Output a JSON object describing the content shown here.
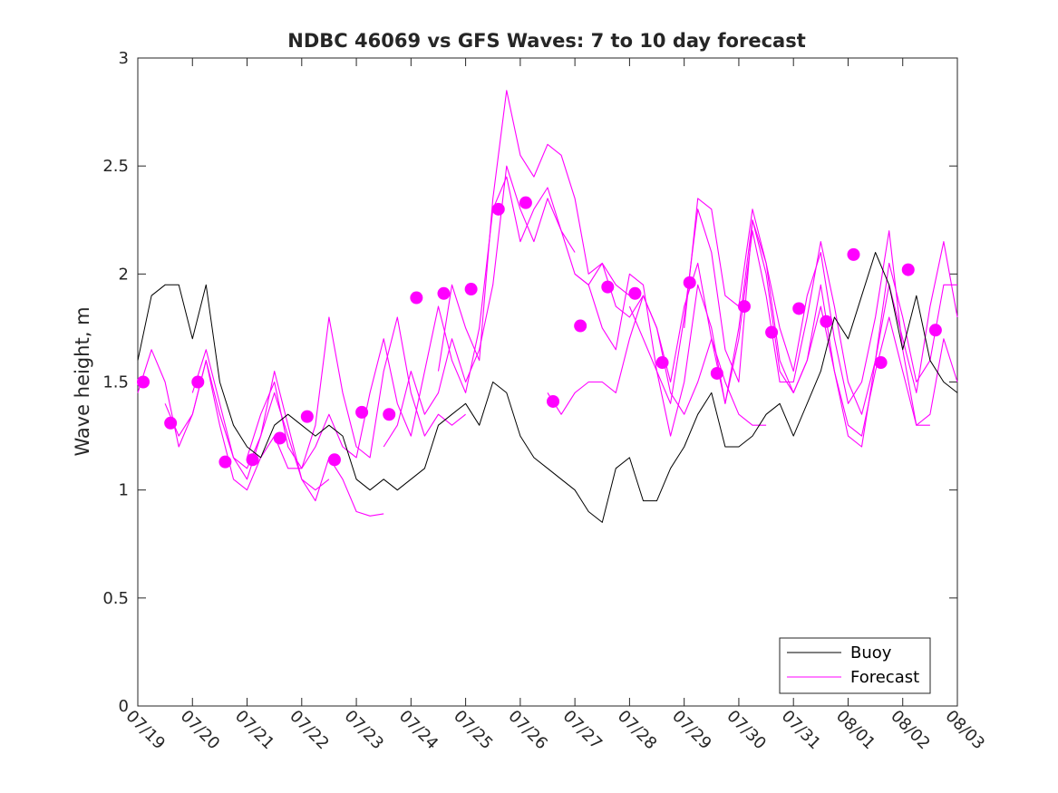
{
  "chart_data": {
    "type": "line",
    "title": "NDBC 46069 vs GFS Waves: 7 to 10 day forecast",
    "xlabel": "",
    "ylabel": "Wave height, m",
    "ylim": [
      0,
      3
    ],
    "yticks": [
      0,
      0.5,
      1,
      1.5,
      2,
      2.5,
      3
    ],
    "xlim": [
      "07/19",
      "08/03"
    ],
    "xtick_labels": [
      "07/19",
      "07/20",
      "07/21",
      "07/22",
      "07/23",
      "07/24",
      "07/25",
      "07/26",
      "07/27",
      "07/28",
      "07/29",
      "07/30",
      "07/31",
      "08/01",
      "08/02",
      "08/03"
    ],
    "x_unit": "day",
    "grid": false,
    "legend": {
      "position": "bottom-right",
      "entries": [
        "Buoy",
        "Forecast"
      ]
    },
    "colors": {
      "buoy": "#000000",
      "forecast": "#ff00ff",
      "axes": "#262626"
    },
    "series": [
      {
        "name": "Buoy",
        "style": "thin black line, hourly observations",
        "days": [
          0.0,
          0.25,
          0.5,
          0.75,
          1.0,
          1.25,
          1.5,
          1.75,
          2.0,
          2.25,
          2.5,
          2.75,
          3.0,
          3.25,
          3.5,
          3.75,
          4.0,
          4.25,
          4.5,
          4.75,
          5.0,
          5.25,
          5.5,
          5.75,
          6.0,
          6.25,
          6.5,
          6.75,
          7.0,
          7.25,
          7.5,
          7.75,
          8.0,
          8.25,
          8.5,
          8.75,
          9.0,
          9.25,
          9.5,
          9.75,
          10.0,
          10.25,
          10.5,
          10.75,
          11.0,
          11.25,
          11.5,
          11.75,
          12.0,
          12.25,
          12.5,
          12.75,
          13.0,
          13.25,
          13.5,
          13.75,
          14.0,
          14.25,
          14.5,
          14.75,
          15.0
        ],
        "values": [
          1.6,
          1.9,
          1.95,
          1.95,
          1.7,
          1.95,
          1.5,
          1.3,
          1.2,
          1.15,
          1.3,
          1.35,
          1.3,
          1.25,
          1.3,
          1.25,
          1.05,
          1.0,
          1.05,
          1.0,
          1.05,
          1.1,
          1.3,
          1.35,
          1.4,
          1.3,
          1.5,
          1.45,
          1.25,
          1.15,
          1.1,
          1.05,
          1.0,
          0.9,
          0.85,
          1.1,
          1.15,
          0.95,
          0.95,
          1.1,
          1.2,
          1.35,
          1.45,
          1.2,
          1.2,
          1.25,
          1.35,
          1.4,
          1.25,
          1.4,
          1.55,
          1.8,
          1.7,
          1.9,
          2.1,
          1.95,
          1.65,
          1.9,
          1.6,
          1.5,
          1.45
        ]
      },
      {
        "name": "Forecast",
        "style": "thin magenta lines, one per forecast run",
        "runs": [
          {
            "days": [
              0.0,
              0.25,
              0.5,
              0.75,
              1.0,
              1.25,
              1.5,
              1.75,
              2.0,
              2.25,
              2.5,
              2.75,
              3.0
            ],
            "values": [
              1.45,
              1.65,
              1.5,
              1.2,
              1.35,
              1.6,
              1.3,
              1.05,
              1.0,
              1.15,
              1.25,
              1.1,
              1.1
            ]
          },
          {
            "days": [
              0.5,
              0.75,
              1.0,
              1.25,
              1.5,
              1.75,
              2.0,
              2.25,
              2.5,
              2.75,
              3.0,
              3.25,
              3.5
            ],
            "values": [
              1.4,
              1.25,
              1.35,
              1.6,
              1.35,
              1.15,
              1.1,
              1.25,
              1.45,
              1.25,
              1.05,
              1.0,
              1.05
            ]
          },
          {
            "days": [
              1.0,
              1.25,
              1.5,
              1.75,
              2.0,
              2.25,
              2.5,
              2.75,
              3.0,
              3.25,
              3.5,
              3.75,
              4.0,
              4.25,
              4.5
            ],
            "values": [
              1.45,
              1.65,
              1.4,
              1.15,
              1.05,
              1.25,
              1.55,
              1.3,
              1.05,
              0.95,
              1.15,
              1.05,
              0.9,
              0.88,
              0.89
            ]
          },
          {
            "days": [
              2.0,
              2.25,
              2.5,
              2.75,
              3.0,
              3.25,
              3.5,
              3.75,
              4.0,
              4.25,
              4.5,
              4.75,
              5.0,
              5.25,
              5.5,
              5.75,
              6.0
            ],
            "values": [
              1.15,
              1.35,
              1.5,
              1.2,
              1.1,
              1.3,
              1.8,
              1.45,
              1.2,
              1.15,
              1.55,
              1.8,
              1.45,
              1.25,
              1.35,
              1.3,
              1.35
            ]
          },
          {
            "days": [
              3.0,
              3.25,
              3.5,
              3.75,
              4.0,
              4.25,
              4.5,
              4.75,
              5.0,
              5.25,
              5.5,
              5.75,
              6.0,
              6.25,
              6.5,
              6.75,
              7.0,
              7.25,
              7.5,
              7.75,
              8.0
            ],
            "values": [
              1.1,
              1.2,
              1.35,
              1.2,
              1.15,
              1.45,
              1.7,
              1.4,
              1.25,
              1.55,
              1.85,
              1.6,
              1.45,
              1.75,
              2.3,
              2.45,
              2.15,
              2.3,
              2.4,
              2.2,
              2.1
            ]
          },
          {
            "days": [
              4.5,
              4.75,
              5.0,
              5.25,
              5.5,
              5.75,
              6.0,
              6.25,
              6.5,
              6.75,
              7.0,
              7.25,
              7.5,
              7.75,
              8.0,
              8.25,
              8.5,
              8.75,
              9.0
            ],
            "values": [
              1.2,
              1.3,
              1.55,
              1.35,
              1.45,
              1.7,
              1.5,
              1.65,
              1.95,
              2.5,
              2.3,
              2.15,
              2.35,
              2.2,
              2.0,
              1.95,
              2.05,
              1.95,
              1.9
            ]
          },
          {
            "days": [
              5.5,
              5.75,
              6.0,
              6.25,
              6.5,
              6.75,
              7.0,
              7.25,
              7.5,
              7.75,
              8.0,
              8.25,
              8.5,
              8.75,
              9.0,
              9.25,
              9.5,
              9.75,
              10.0,
              10.25,
              10.5,
              10.75,
              11.0,
              11.25,
              11.5
            ],
            "values": [
              1.55,
              1.95,
              1.75,
              1.6,
              2.35,
              2.85,
              2.55,
              2.45,
              2.6,
              2.55,
              2.35,
              2.0,
              2.05,
              1.85,
              1.8,
              1.9,
              1.75,
              1.45,
              1.35,
              1.5,
              1.7,
              1.5,
              1.35,
              1.3,
              1.3
            ]
          },
          {
            "days": [
              7.5,
              7.75,
              8.0,
              8.25,
              8.5,
              8.75,
              9.0,
              9.25,
              9.5,
              9.75,
              10.0,
              10.25,
              10.5,
              10.75,
              11.0,
              11.25,
              11.5,
              11.75,
              12.0,
              12.25,
              12.5,
              12.75,
              13.0,
              13.25,
              13.5,
              13.75,
              14.0,
              14.25,
              14.5
            ],
            "values": [
              1.45,
              1.35,
              1.45,
              1.5,
              1.5,
              1.45,
              1.7,
              1.9,
              1.75,
              1.5,
              1.85,
              2.05,
              1.7,
              1.4,
              1.75,
              2.25,
              2.0,
              1.55,
              1.45,
              1.6,
              1.85,
              1.55,
              1.3,
              1.25,
              1.55,
              1.8,
              1.55,
              1.3,
              1.3
            ]
          },
          {
            "days": [
              8.0,
              8.25,
              8.5,
              8.75,
              9.0,
              9.25,
              9.5,
              9.75,
              10.0,
              10.25,
              10.5,
              10.75,
              11.0,
              11.25,
              11.5,
              11.75,
              12.0,
              12.25,
              12.5,
              12.75,
              13.0,
              13.25,
              13.5,
              13.75,
              14.0,
              14.25,
              14.5,
              14.75,
              15.0
            ],
            "values": [
              2.0,
              1.95,
              1.75,
              1.65,
              2.0,
              1.95,
              1.55,
              1.25,
              1.5,
              1.95,
              1.75,
              1.4,
              1.7,
              2.2,
              1.9,
              1.5,
              1.5,
              1.8,
              2.15,
              1.85,
              1.5,
              1.35,
              1.6,
              1.95,
              1.7,
              1.45,
              1.85,
              2.15,
              1.8
            ]
          },
          {
            "days": [
              9.0,
              9.25,
              9.5,
              9.75,
              10.0,
              10.25,
              10.5,
              10.75,
              11.0,
              11.25,
              11.5,
              11.75,
              12.0,
              12.25,
              12.5,
              12.75,
              13.0,
              13.25,
              13.5,
              13.75,
              14.0,
              14.25,
              14.5,
              14.75,
              15.0
            ],
            "values": [
              1.85,
              1.7,
              1.55,
              1.4,
              1.8,
              2.3,
              2.1,
              1.65,
              1.5,
              2.25,
              2.05,
              1.6,
              1.45,
              1.6,
              1.95,
              1.55,
              1.25,
              1.2,
              1.6,
              2.05,
              1.8,
              1.5,
              1.6,
              1.95,
              1.95
            ]
          },
          {
            "days": [
              10.0,
              10.25,
              10.5,
              10.75,
              11.0,
              11.25,
              11.5,
              11.75,
              12.0,
              12.25,
              12.5,
              12.75,
              13.0,
              13.25,
              13.5,
              13.75,
              14.0,
              14.25,
              14.5,
              14.75,
              15.0
            ],
            "values": [
              1.75,
              2.35,
              2.3,
              1.9,
              1.85,
              2.3,
              2.05,
              1.75,
              1.55,
              1.9,
              2.1,
              1.7,
              1.4,
              1.5,
              1.8,
              2.2,
              1.65,
              1.3,
              1.35,
              1.7,
              1.5
            ]
          }
        ]
      },
      {
        "name": "",
        "style": "large filled magenta circles, forecast sampled every 12 h",
        "days": [
          0.1,
          0.6,
          1.1,
          1.6,
          2.1,
          2.6,
          3.1,
          3.6,
          4.1,
          4.6,
          5.1,
          5.6,
          6.1,
          6.6,
          7.1,
          7.6,
          8.1,
          8.6,
          9.1,
          9.6,
          10.1,
          10.6,
          11.1,
          11.6,
          12.1,
          12.6,
          13.1,
          13.6,
          14.1,
          14.6
        ],
        "values": [
          1.5,
          1.31,
          1.5,
          1.13,
          1.14,
          1.24,
          1.34,
          1.14,
          1.36,
          1.35,
          1.89,
          1.91,
          1.93,
          2.3,
          2.33,
          1.41,
          1.76,
          1.94,
          1.91,
          1.59,
          1.96,
          1.54,
          1.85,
          1.73,
          1.84,
          1.78,
          2.09,
          1.59,
          2.02,
          1.74
        ]
      }
    ]
  }
}
